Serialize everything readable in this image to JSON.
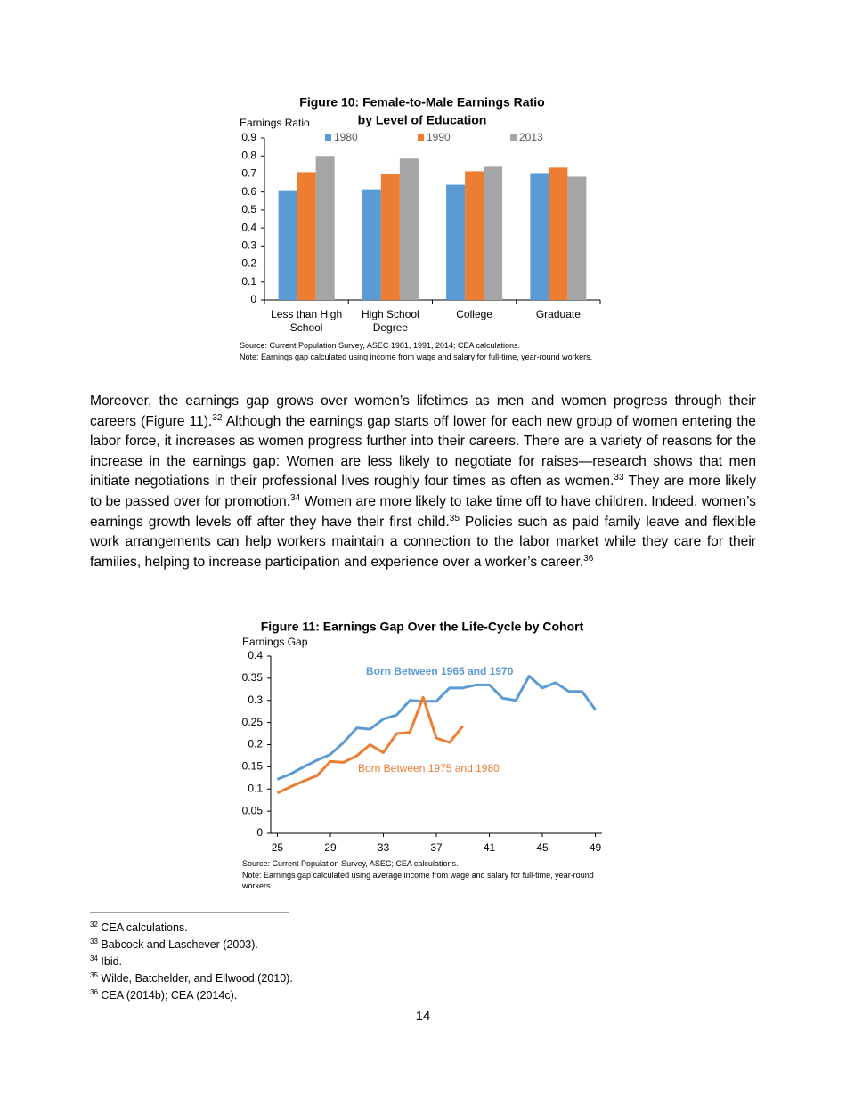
{
  "chart_data": [
    {
      "type": "bar",
      "title": [
        "Figure 10: Female-to-Male Earnings Ratio",
        "by Level of Education"
      ],
      "ylabel": "Earnings Ratio",
      "categories": [
        "Less than High School",
        "High School Degree",
        "College",
        "Graduate"
      ],
      "series": [
        {
          "name": "1980",
          "color": "#5b9bd5",
          "values": [
            0.61,
            0.615,
            0.64,
            0.705
          ]
        },
        {
          "name": "1990",
          "color": "#ed7d31",
          "values": [
            0.71,
            0.7,
            0.715,
            0.735
          ]
        },
        {
          "name": "2013",
          "color": "#a5a5a5",
          "values": [
            0.8,
            0.785,
            0.74,
            0.685
          ]
        }
      ],
      "ylim": [
        0,
        0.9
      ],
      "yticks": [
        0,
        0.1,
        0.2,
        0.3,
        0.4,
        0.5,
        0.6,
        0.7,
        0.8,
        0.9
      ],
      "grid": false,
      "legend": "top",
      "source": "Source: Current Population Survey, ASEC 1981, 1991, 2014; CEA calculations.",
      "note": "Note: Earnings gap calculated using income from wage and salary for full-time, year-round workers."
    },
    {
      "type": "line",
      "title": "Figure 11: Earnings Gap Over the Life-Cycle by Cohort",
      "ylabel": "Earnings Gap",
      "x": [
        25,
        26,
        27,
        28,
        29,
        30,
        31,
        32,
        33,
        34,
        35,
        36,
        37,
        38,
        39,
        40,
        41,
        42,
        43,
        44,
        45,
        46,
        47,
        48,
        49
      ],
      "series": [
        {
          "name": "Born Between 1965 and 1970",
          "color": "#5b9bd5",
          "values": [
            0.122,
            0.134,
            0.15,
            0.165,
            0.178,
            0.205,
            0.238,
            0.235,
            0.258,
            0.267,
            0.3,
            0.298,
            0.298,
            0.328,
            0.328,
            0.335,
            0.335,
            0.305,
            0.3,
            0.355,
            0.328,
            0.34,
            0.32,
            0.32,
            0.279
          ]
        },
        {
          "name": "Born Between 1975 and 1980",
          "color": "#ed7d31",
          "values": [
            0.091,
            0.105,
            0.118,
            0.13,
            0.162,
            0.16,
            0.175,
            0.2,
            0.182,
            0.225,
            0.228,
            0.307,
            0.215,
            0.205,
            0.242,
            null,
            null,
            null,
            null,
            null,
            null,
            null,
            null,
            null,
            null
          ]
        }
      ],
      "xlim": [
        24.5,
        49.5
      ],
      "xticks": [
        25,
        29,
        33,
        37,
        41,
        45,
        49
      ],
      "ylim": [
        0,
        0.4
      ],
      "yticks": [
        0,
        0.05,
        0.1,
        0.15,
        0.2,
        0.25,
        0.3,
        0.35,
        0.4
      ],
      "grid": false,
      "source": "Source: Current Population Survey, ASEC; CEA calculations.",
      "note": "Note: Earnings gap calculated using average income from wage and salary for full-time, year-round workers."
    }
  ],
  "document": {
    "paragraph": [
      {
        "text": "Moreover, the earnings gap grows over women’s lifetimes as men and women progress through their careers (Figure 11)."
      },
      {
        "sup": "32"
      },
      {
        "text": " Although the earnings gap starts off lower for each new group of women entering the labor force, it increases as women progress further into their careers. There are a variety of reasons for the increase in the earnings gap: Women are less likely to negotiate for raises—research shows that men initiate negotiations in their professional lives roughly four times as often as women."
      },
      {
        "sup": "33"
      },
      {
        "text": " They are more likely to be passed over for promotion."
      },
      {
        "sup": "34"
      },
      {
        "text": " Women are more likely to take time off to have children. Indeed, women’s earnings growth levels off after they have their first child."
      },
      {
        "sup": "35"
      },
      {
        "text": " Policies such as paid family leave and flexible work arrangements can help workers maintain a connection to the labor market while they care for their families, helping to increase participation and experience over a worker’s career."
      },
      {
        "sup": "36"
      }
    ],
    "footnotes": [
      {
        "mark": "32",
        "text": "CEA calculations."
      },
      {
        "mark": "33",
        "text": "Babcock and Laschever (2003)."
      },
      {
        "mark": "34",
        "text": "Ibid."
      },
      {
        "mark": "35",
        "text": "Wilde, Batchelder, and Ellwood (2010)."
      },
      {
        "mark": "36",
        "text": "CEA (2014b); CEA (2014c)."
      }
    ],
    "page_number": "14"
  }
}
